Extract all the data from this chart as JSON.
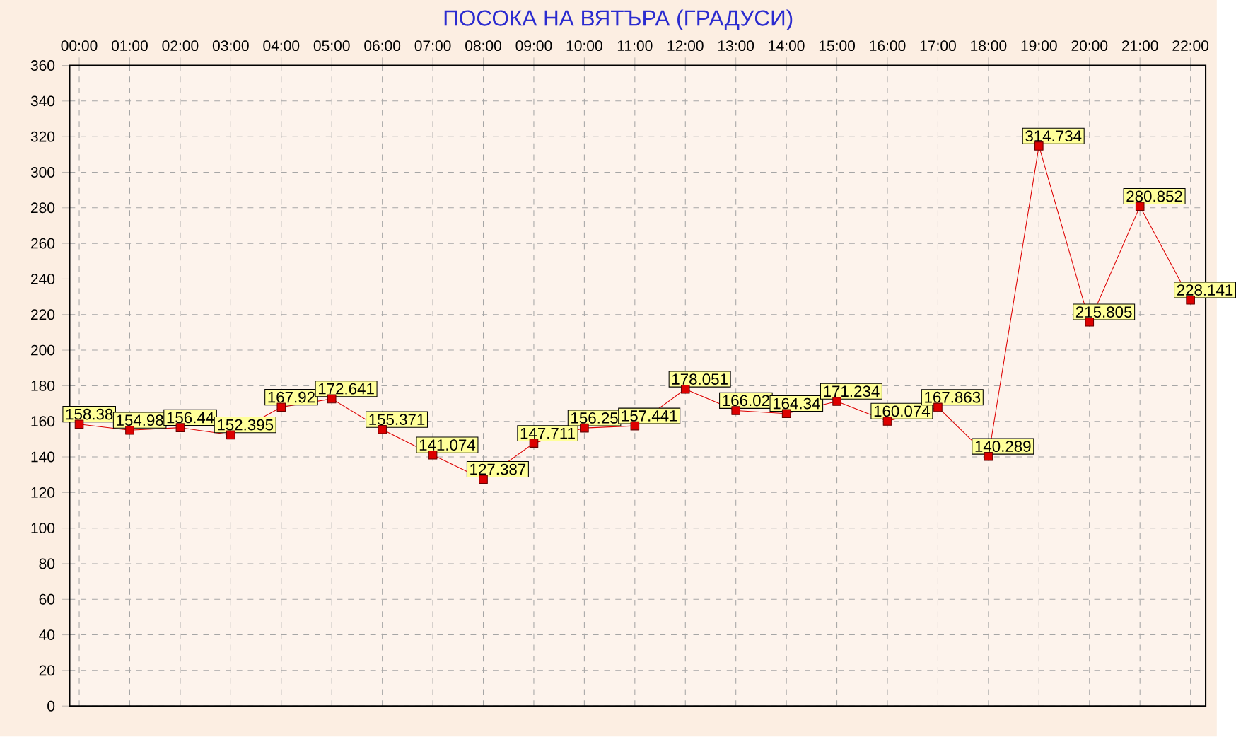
{
  "chart_data": {
    "type": "line",
    "title": "ПОСОКА НА ВЯТЪРА    (ГРАДУСИ)",
    "categories": [
      "00:00",
      "01:00",
      "02:00",
      "03:00",
      "04:00",
      "05:00",
      "06:00",
      "07:00",
      "08:00",
      "09:00",
      "10:00",
      "11:00",
      "12:00",
      "13:00",
      "14:00",
      "15:00",
      "16:00",
      "17:00",
      "18:00",
      "19:00",
      "20:00",
      "21:00",
      "22:00"
    ],
    "values": [
      158.38,
      154.98,
      156.44,
      152.395,
      167.92,
      172.641,
      155.371,
      141.074,
      127.387,
      147.711,
      156.25,
      157.441,
      178.051,
      166.02,
      164.34,
      171.234,
      160.074,
      167.863,
      140.289,
      314.734,
      215.805,
      280.852,
      228.141
    ],
    "value_labels": [
      "158.38",
      "154.98",
      "156.44",
      "152.395",
      "167.92",
      "172.641",
      "155.371",
      "141.074",
      "127.387",
      "147.711",
      "156.25",
      "157.441",
      "178.051",
      "166.02",
      "164.34",
      "171.234",
      "160.074",
      "167.863",
      "140.289",
      "314.734",
      "215.805",
      "280.852",
      "228.141"
    ],
    "color": "#dd0000",
    "marker": "square",
    "line_style": "solid",
    "grid": true,
    "ylim": [
      0,
      360
    ],
    "yticks": [
      0,
      20,
      40,
      60,
      80,
      100,
      120,
      140,
      160,
      180,
      200,
      220,
      240,
      260,
      280,
      300,
      320,
      340,
      360
    ]
  }
}
